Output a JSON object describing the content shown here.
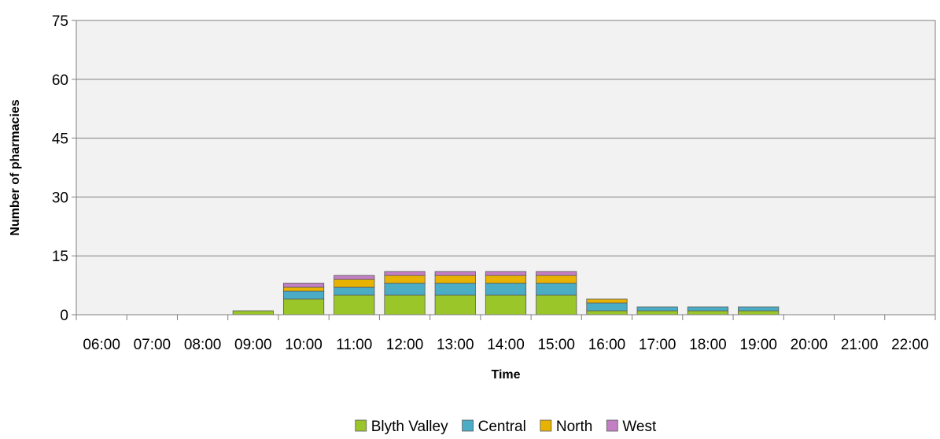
{
  "chart_data": {
    "type": "bar",
    "stacked": true,
    "title": "",
    "xlabel": "Time",
    "ylabel": "Number of pharmacies",
    "ylim": [
      0,
      75
    ],
    "yticks": [
      "0",
      "15",
      "30",
      "45",
      "60",
      "75"
    ],
    "grid": true,
    "legend_position": "bottom",
    "categories": [
      "06:00",
      "07:00",
      "08:00",
      "09:00",
      "10:00",
      "11:00",
      "12:00",
      "13:00",
      "14:00",
      "15:00",
      "16:00",
      "17:00",
      "18:00",
      "19:00",
      "20:00",
      "21:00",
      "22:00"
    ],
    "series": [
      {
        "name": "Blyth Valley",
        "color": "#9BC62A",
        "values": [
          0,
          0,
          0,
          1,
          4,
          5,
          5,
          5,
          5,
          5,
          1,
          1,
          1,
          1,
          0,
          0,
          0
        ]
      },
      {
        "name": "Central",
        "color": "#4BACC6",
        "values": [
          0,
          0,
          0,
          0,
          2,
          2,
          3,
          3,
          3,
          3,
          2,
          1,
          1,
          1,
          0,
          0,
          0
        ]
      },
      {
        "name": "North",
        "color": "#E8B200",
        "values": [
          0,
          0,
          0,
          0,
          1,
          2,
          2,
          2,
          2,
          2,
          1,
          0,
          0,
          0,
          0,
          0,
          0
        ]
      },
      {
        "name": "West",
        "color": "#C27FC4",
        "values": [
          0,
          0,
          0,
          0,
          1,
          1,
          1,
          1,
          1,
          1,
          0,
          0,
          0,
          0,
          0,
          0,
          0
        ]
      }
    ]
  }
}
